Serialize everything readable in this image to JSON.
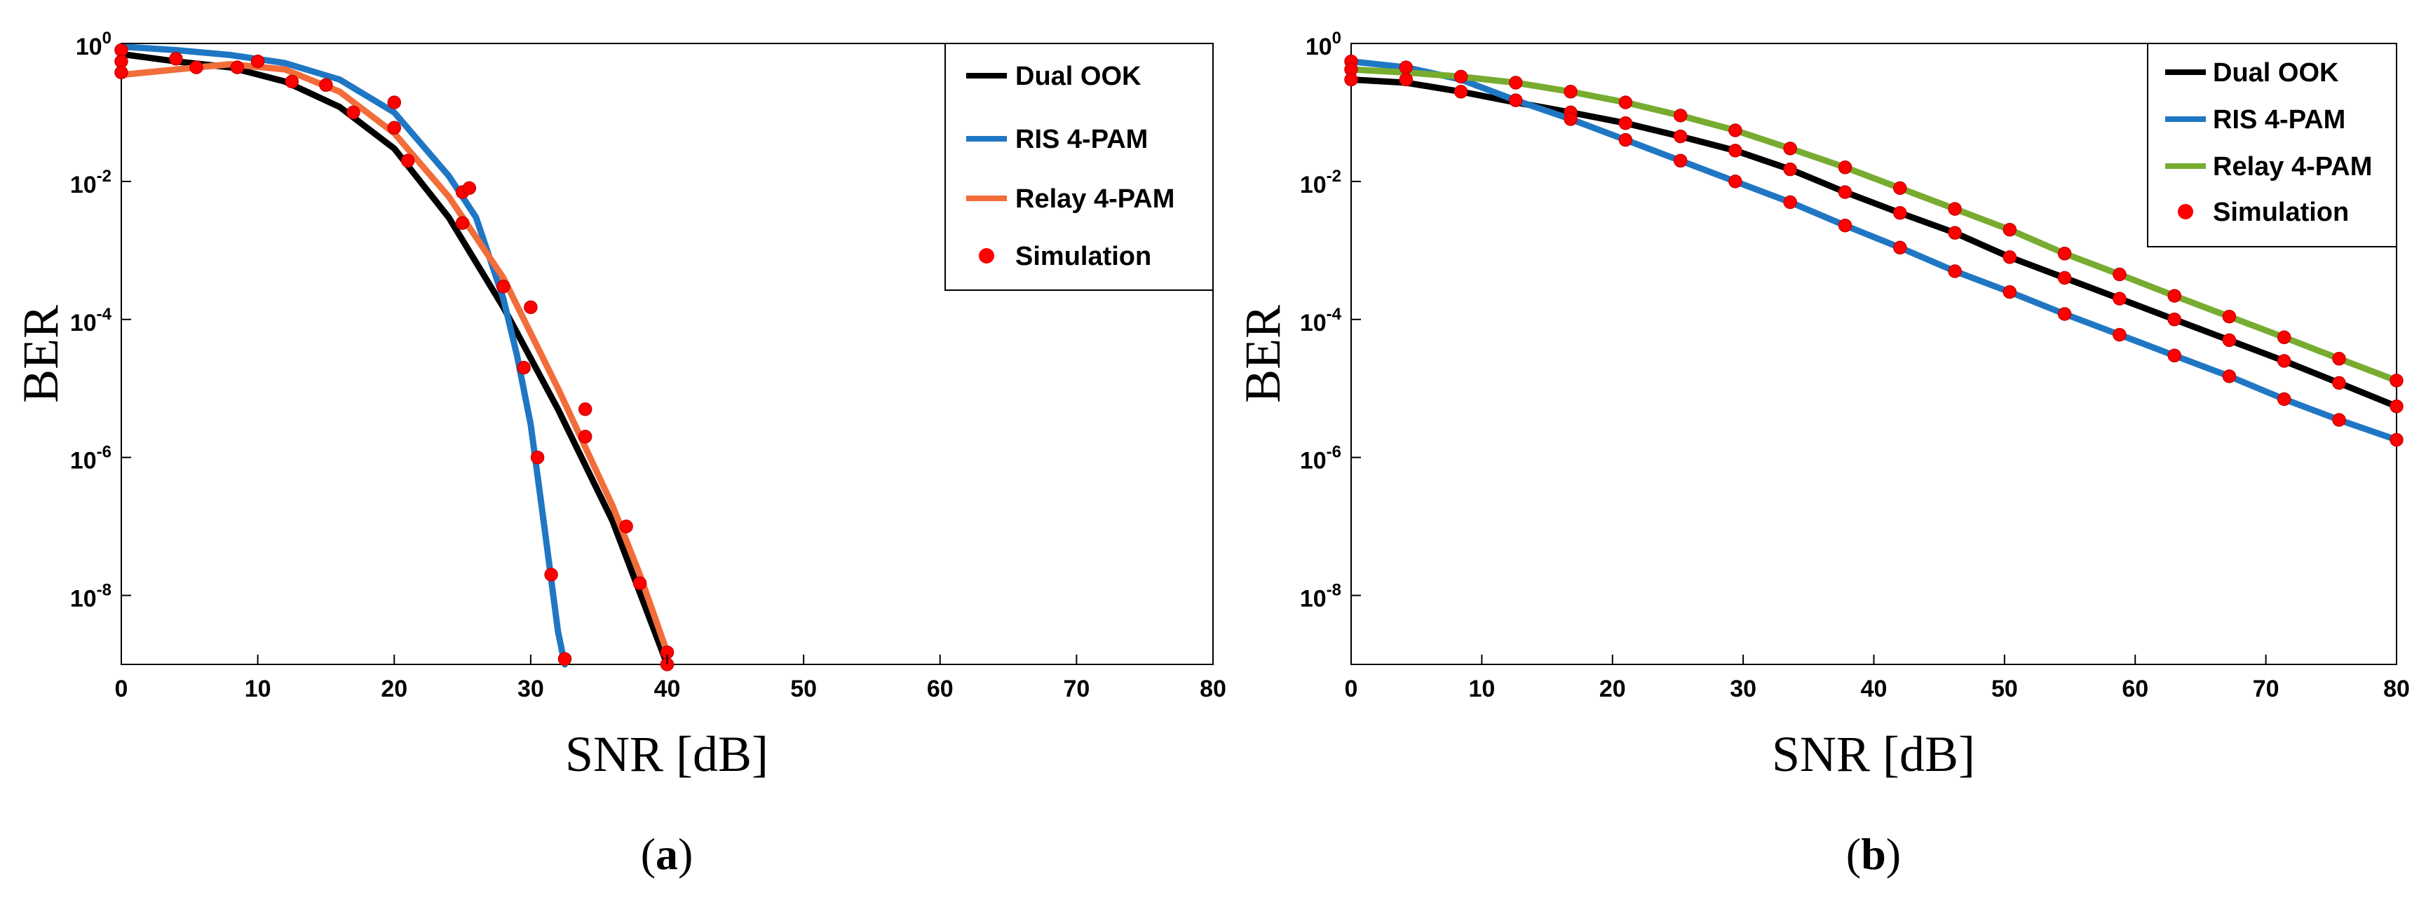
{
  "figure": {
    "panels": [
      {
        "caption_open": "(",
        "caption_letter": "a",
        "caption_close": ")"
      },
      {
        "caption_open": "(",
        "caption_letter": "b",
        "caption_close": ")"
      }
    ]
  },
  "colors": {
    "dual_ook": "#000000",
    "ris": "#1f77c4",
    "relay_a": "#f26d3a",
    "relay_b": "#77ac30",
    "simulation": "#ff0000"
  },
  "chart_data": [
    {
      "type": "line",
      "title": "",
      "xlabel": "SNR [dB]",
      "ylabel": "BER",
      "xscale": "linear",
      "yscale": "log",
      "xlim": [
        0,
        80
      ],
      "ylim": [
        1e-09,
        1
      ],
      "xticks": [
        0,
        10,
        20,
        30,
        40,
        50,
        60,
        70,
        80
      ],
      "yticks": [
        {
          "exp": 0,
          "base": "10",
          "sup": "0"
        },
        {
          "exp": -2,
          "base": "10",
          "sup": "-2"
        },
        {
          "exp": -4,
          "base": "10",
          "sup": "-4"
        },
        {
          "exp": -6,
          "base": "10",
          "sup": "-6"
        },
        {
          "exp": -8,
          "base": "10",
          "sup": "-8"
        }
      ],
      "legend_position": "top-right",
      "series": [
        {
          "name": "Dual OOK",
          "color": "#000000",
          "x": [
            0,
            4,
            8,
            12,
            16,
            20,
            24,
            28,
            32,
            36,
            40
          ],
          "y": [
            0.7,
            0.55,
            0.45,
            0.28,
            0.12,
            0.03,
            0.003,
            0.00015,
            5e-06,
            1.2e-07,
            1e-09
          ]
        },
        {
          "name": "RIS 4-PAM",
          "color": "#1f77c4",
          "x": [
            0,
            4,
            8,
            12,
            16,
            20,
            24,
            26,
            28,
            29,
            30,
            31,
            32,
            32.5
          ],
          "y": [
            0.9,
            0.8,
            0.68,
            0.52,
            0.3,
            0.1,
            0.012,
            0.003,
            0.0002,
            3e-05,
            3e-06,
            1e-07,
            3e-09,
            1e-09
          ]
        },
        {
          "name": "Relay 4-PAM",
          "color": "#f26d3a",
          "x": [
            0,
            4,
            8,
            12,
            16,
            20,
            24,
            28,
            32,
            36,
            38,
            40
          ],
          "y": [
            0.35,
            0.42,
            0.5,
            0.42,
            0.2,
            0.05,
            0.006,
            0.0004,
            1e-05,
            2e-07,
            2e-08,
            1.5e-09
          ]
        }
      ],
      "simulation": {
        "name": "Simulation",
        "color": "#ff0000",
        "points": [
          [
            0,
            0.8
          ],
          [
            0,
            0.55
          ],
          [
            0,
            0.38
          ],
          [
            4,
            0.6
          ],
          [
            5.5,
            0.45
          ],
          [
            8.5,
            0.45
          ],
          [
            10,
            0.55
          ],
          [
            12.5,
            0.28
          ],
          [
            15,
            0.25
          ],
          [
            17,
            0.1
          ],
          [
            20,
            0.14
          ],
          [
            20,
            0.06
          ],
          [
            21,
            0.02
          ],
          [
            25,
            0.007
          ],
          [
            25.5,
            0.008
          ],
          [
            25,
            0.0025
          ],
          [
            28,
            0.0003
          ],
          [
            30,
            0.00015
          ],
          [
            29.5,
            2e-05
          ],
          [
            30.5,
            1e-06
          ],
          [
            31.5,
            2e-08
          ],
          [
            32.5,
            1.2e-09
          ],
          [
            34,
            5e-06
          ],
          [
            34,
            2e-06
          ],
          [
            37,
            1e-07
          ],
          [
            38,
            1.5e-08
          ],
          [
            40,
            1.5e-09
          ],
          [
            40,
            1e-09
          ]
        ]
      }
    },
    {
      "type": "line",
      "title": "",
      "xlabel": "SNR [dB]",
      "ylabel": "BER",
      "xscale": "linear",
      "yscale": "log",
      "xlim": [
        0,
        80
      ],
      "ylim": [
        1e-09,
        1
      ],
      "xticks": [
        0,
        10,
        20,
        30,
        40,
        50,
        60,
        70,
        80
      ],
      "yticks": [
        {
          "exp": 0,
          "base": "10",
          "sup": "0"
        },
        {
          "exp": -2,
          "base": "10",
          "sup": "-2"
        },
        {
          "exp": -4,
          "base": "10",
          "sup": "-4"
        },
        {
          "exp": -6,
          "base": "10",
          "sup": "-6"
        },
        {
          "exp": -8,
          "base": "10",
          "sup": "-8"
        }
      ],
      "legend_position": "top-right",
      "series": [
        {
          "name": "Dual OOK",
          "color": "#000000",
          "x": [
            0,
            4.2,
            8.4,
            12.6,
            16.8,
            21,
            25.2,
            29.4,
            33.6,
            37.8,
            42,
            46.2,
            50.4,
            54.6,
            58.8,
            63,
            67.2,
            71.4,
            75.6,
            80
          ],
          "y": [
            0.3,
            0.27,
            0.2,
            0.14,
            0.1,
            0.07,
            0.045,
            0.028,
            0.015,
            0.007,
            0.0035,
            0.0018,
            0.0008,
            0.0004,
            0.0002,
            0.0001,
            5e-05,
            2.5e-05,
            1.2e-05,
            5.5e-06
          ]
        },
        {
          "name": "RIS 4-PAM",
          "color": "#1f77c4",
          "x": [
            0,
            4.2,
            8.4,
            12.6,
            16.8,
            21,
            25.2,
            29.4,
            33.6,
            37.8,
            42,
            46.2,
            50.4,
            54.6,
            58.8,
            63,
            67.2,
            71.4,
            75.6,
            80
          ],
          "y": [
            0.55,
            0.45,
            0.3,
            0.15,
            0.08,
            0.04,
            0.02,
            0.01,
            0.005,
            0.0023,
            0.0011,
            0.0005,
            0.00025,
            0.00012,
            6e-05,
            3e-05,
            1.5e-05,
            7e-06,
            3.5e-06,
            1.8e-06
          ]
        },
        {
          "name": "Relay 4-PAM",
          "color": "#77ac30",
          "x": [
            0,
            4.2,
            8.4,
            12.6,
            16.8,
            21,
            25.2,
            29.4,
            33.6,
            37.8,
            42,
            46.2,
            50.4,
            54.6,
            58.8,
            63,
            67.2,
            71.4,
            75.6,
            80
          ],
          "y": [
            0.42,
            0.38,
            0.33,
            0.27,
            0.2,
            0.14,
            0.09,
            0.055,
            0.03,
            0.016,
            0.008,
            0.004,
            0.002,
            0.0009,
            0.00045,
            0.00022,
            0.00011,
            5.5e-05,
            2.7e-05,
            1.3e-05
          ]
        }
      ],
      "simulation": {
        "name": "Simulation",
        "color": "#ff0000",
        "points": [
          [
            0,
            0.55
          ],
          [
            0,
            0.42
          ],
          [
            0,
            0.3
          ],
          [
            4.2,
            0.45
          ],
          [
            4.2,
            0.3
          ],
          [
            8.4,
            0.33
          ],
          [
            8.4,
            0.2
          ],
          [
            12.6,
            0.27
          ],
          [
            12.6,
            0.15
          ],
          [
            16.8,
            0.2
          ],
          [
            16.8,
            0.1
          ],
          [
            16.8,
            0.08
          ],
          [
            21,
            0.14
          ],
          [
            21,
            0.07
          ],
          [
            21,
            0.04
          ],
          [
            25.2,
            0.09
          ],
          [
            25.2,
            0.045
          ],
          [
            25.2,
            0.02
          ],
          [
            29.4,
            0.055
          ],
          [
            29.4,
            0.028
          ],
          [
            29.4,
            0.01
          ],
          [
            33.6,
            0.03
          ],
          [
            33.6,
            0.015
          ],
          [
            33.6,
            0.005
          ],
          [
            37.8,
            0.016
          ],
          [
            37.8,
            0.007
          ],
          [
            37.8,
            0.0023
          ],
          [
            42,
            0.008
          ],
          [
            42,
            0.0035
          ],
          [
            42,
            0.0011
          ],
          [
            46.2,
            0.004
          ],
          [
            46.2,
            0.0018
          ],
          [
            46.2,
            0.0005
          ],
          [
            50.4,
            0.002
          ],
          [
            50.4,
            0.0008
          ],
          [
            50.4,
            0.00025
          ],
          [
            54.6,
            0.0009
          ],
          [
            54.6,
            0.0004
          ],
          [
            54.6,
            0.00012
          ],
          [
            58.8,
            0.00045
          ],
          [
            58.8,
            0.0002
          ],
          [
            58.8,
            6e-05
          ],
          [
            63,
            0.00022
          ],
          [
            63,
            0.0001
          ],
          [
            63,
            3e-05
          ],
          [
            67.2,
            0.00011
          ],
          [
            67.2,
            5e-05
          ],
          [
            67.2,
            1.5e-05
          ],
          [
            71.4,
            5.5e-05
          ],
          [
            71.4,
            2.5e-05
          ],
          [
            71.4,
            7e-06
          ],
          [
            75.6,
            2.7e-05
          ],
          [
            75.6,
            1.2e-05
          ],
          [
            75.6,
            3.5e-06
          ],
          [
            80,
            1.3e-05
          ],
          [
            80,
            5.5e-06
          ],
          [
            80,
            1.8e-06
          ]
        ]
      }
    }
  ]
}
